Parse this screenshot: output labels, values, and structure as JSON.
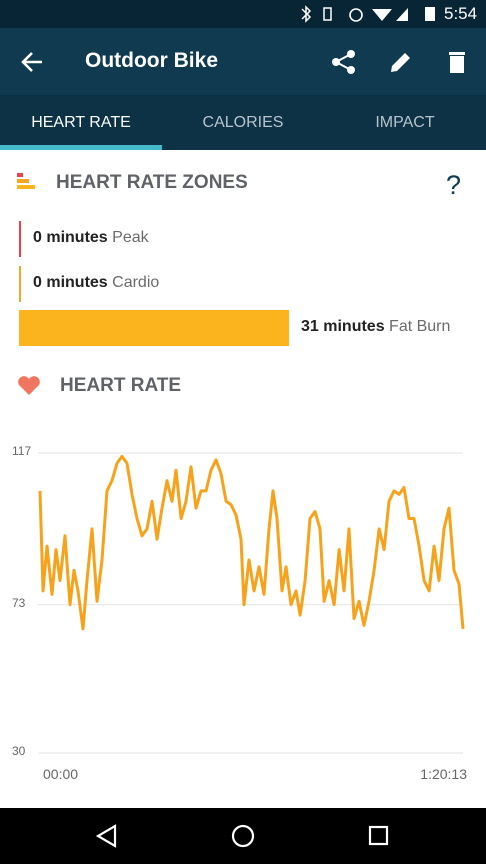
{
  "status_bar": {
    "time": "5:54"
  },
  "toolbar": {
    "title": "Outdoor Bike"
  },
  "tabs": [
    "HEART RATE",
    "CALORIES",
    "IMPACT"
  ],
  "zones": {
    "title": "HEART RATE ZONES",
    "help": "?",
    "items": [
      {
        "name": "Peak",
        "value": 0,
        "value_label": "0 minutes",
        "color": "#e8424a"
      },
      {
        "name": "Cardio",
        "value": 0,
        "value_label": "0 minutes",
        "color": "#f5a623"
      },
      {
        "name": "Fat Burn",
        "value": 31,
        "value_label": "31 minutes",
        "color": "#fbb41d"
      }
    ]
  },
  "chart_data": {
    "type": "line",
    "title": "HEART RATE",
    "color": "#f7a21b",
    "x": [
      0,
      34,
      80,
      137,
      182,
      228,
      285,
      341,
      387,
      432,
      489,
      535,
      592,
      649,
      705,
      762,
      819,
      876,
      933,
      990,
      1047,
      1104,
      1161,
      1218,
      1275,
      1331,
      1388,
      1445,
      1502,
      1548,
      1605,
      1661,
      1718,
      1775,
      1832,
      1889,
      1946,
      2003,
      2060,
      2117,
      2174,
      2230,
      2287,
      2321,
      2378,
      2435,
      2492,
      2549,
      2606,
      2651,
      2697,
      2754,
      2799,
      2856,
      2913,
      2959,
      3016,
      3072,
      3129,
      3186,
      3232,
      3289,
      3346,
      3403,
      3459,
      3516,
      3573,
      3630,
      3687,
      3744,
      3801,
      3858,
      3915,
      3971,
      4028,
      4085,
      4142,
      4199,
      4256,
      4313,
      4370,
      4427,
      4484,
      4540,
      4597,
      4654,
      4711,
      4768,
      4813
    ],
    "values": [
      106,
      77,
      90,
      76,
      89,
      80,
      93,
      73,
      83,
      77,
      66,
      80,
      95,
      74,
      86,
      106,
      109,
      114,
      116,
      114,
      105,
      98,
      93,
      95,
      103,
      92,
      101,
      109,
      103,
      112,
      98,
      103,
      113,
      101,
      106,
      106,
      112,
      115,
      111,
      103,
      102,
      99,
      92,
      73,
      86,
      77,
      84,
      76,
      95,
      106,
      98,
      77,
      84,
      73,
      77,
      70,
      80,
      98,
      100,
      95,
      74,
      80,
      73,
      89,
      77,
      95,
      69,
      74,
      67,
      74,
      83,
      95,
      89,
      103,
      106,
      105,
      107,
      98,
      98,
      90,
      80,
      77,
      90,
      80,
      95,
      101,
      83,
      79,
      66
    ],
    "xlim": [
      0,
      4813
    ],
    "xticks": [
      {
        "value": 0,
        "label": "00:00"
      },
      {
        "value": 4813,
        "label": "1:20:13"
      }
    ],
    "ylim": [
      30,
      117
    ],
    "yticks": [
      30,
      73,
      117
    ],
    "grid": true
  }
}
